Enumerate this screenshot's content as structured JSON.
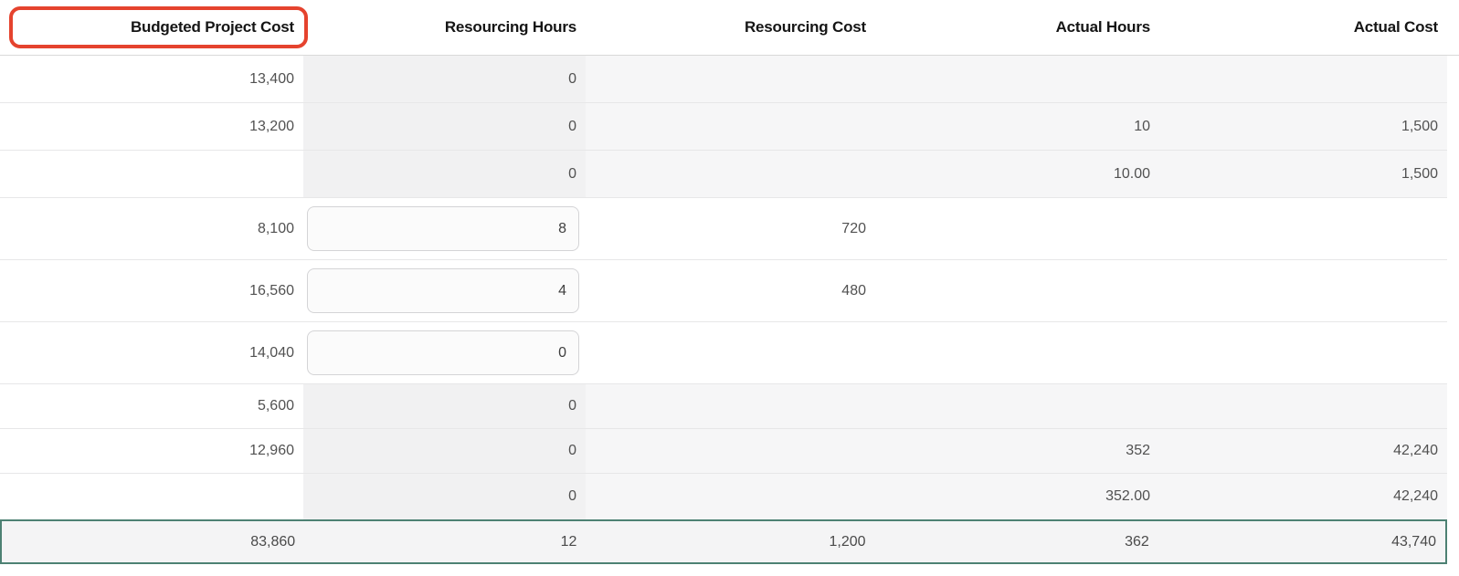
{
  "colors": {
    "annotation": "#e5432e",
    "total_border": "#4d8173",
    "hours_column_bg": "#f1f1f2",
    "row_bg": "#f6f6f7"
  },
  "table": {
    "columns": [
      {
        "id": "budgeted_project_cost",
        "label": "Budgeted Project Cost",
        "annotated": true
      },
      {
        "id": "resourcing_hours",
        "label": "Resourcing Hours",
        "annotated": false
      },
      {
        "id": "resourcing_cost",
        "label": "Resourcing Cost",
        "annotated": false
      },
      {
        "id": "actual_hours",
        "label": "Actual Hours",
        "annotated": false
      },
      {
        "id": "actual_cost",
        "label": "Actual Cost",
        "annotated": false
      }
    ],
    "rows": [
      {
        "budgeted_project_cost": "13,400",
        "resourcing_hours": "0",
        "resourcing_hours_editable": false,
        "resourcing_cost": "",
        "actual_hours": "",
        "actual_cost": ""
      },
      {
        "budgeted_project_cost": "13,200",
        "resourcing_hours": "0",
        "resourcing_hours_editable": false,
        "resourcing_cost": "",
        "actual_hours": "10",
        "actual_cost": "1,500"
      },
      {
        "budgeted_project_cost": "",
        "resourcing_hours": "0",
        "resourcing_hours_editable": false,
        "resourcing_cost": "",
        "actual_hours": "10.00",
        "actual_cost": "1,500"
      },
      {
        "budgeted_project_cost": "8,100",
        "resourcing_hours": "8",
        "resourcing_hours_editable": true,
        "resourcing_cost": "720",
        "actual_hours": "",
        "actual_cost": ""
      },
      {
        "budgeted_project_cost": "16,560",
        "resourcing_hours": "4",
        "resourcing_hours_editable": true,
        "resourcing_cost": "480",
        "actual_hours": "",
        "actual_cost": ""
      },
      {
        "budgeted_project_cost": "14,040",
        "resourcing_hours": "0",
        "resourcing_hours_editable": true,
        "resourcing_cost": "",
        "actual_hours": "",
        "actual_cost": ""
      },
      {
        "budgeted_project_cost": "5,600",
        "resourcing_hours": "0",
        "resourcing_hours_editable": false,
        "resourcing_cost": "",
        "actual_hours": "",
        "actual_cost": ""
      },
      {
        "budgeted_project_cost": "12,960",
        "resourcing_hours": "0",
        "resourcing_hours_editable": false,
        "resourcing_cost": "",
        "actual_hours": "352",
        "actual_cost": "42,240"
      },
      {
        "budgeted_project_cost": "",
        "resourcing_hours": "0",
        "resourcing_hours_editable": false,
        "resourcing_cost": "",
        "actual_hours": "352.00",
        "actual_cost": "42,240"
      }
    ],
    "total_row": {
      "budgeted_project_cost": "83,860",
      "resourcing_hours": "12",
      "resourcing_cost": "1,200",
      "actual_hours": "362",
      "actual_cost": "43,740"
    }
  }
}
